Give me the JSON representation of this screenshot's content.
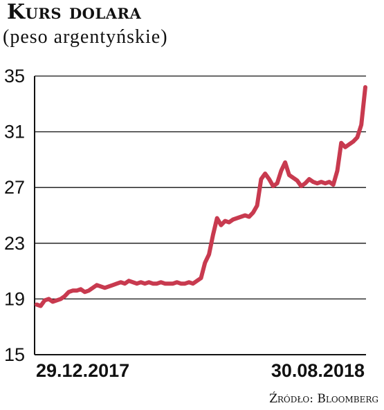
{
  "header": {
    "title": "Kurs dolara",
    "subtitle": "(peso argentyńskie)"
  },
  "footer": {
    "source": "Źródło: Bloomberg"
  },
  "colors": {
    "line": "#c83a4f",
    "grid": "#111111"
  },
  "chart_data": {
    "type": "line",
    "title": "Kurs dolara",
    "subtitle": "(peso argentyńskie)",
    "xlabel": "",
    "ylabel": "",
    "ylim": [
      15,
      35
    ],
    "yticks": [
      15,
      19,
      23,
      27,
      31,
      35
    ],
    "x_tick_labels": [
      "29.12.2017",
      "30.08.2018"
    ],
    "grid": true,
    "series": [
      {
        "values": [
          18.6,
          18.5,
          18.9,
          19.0,
          18.8,
          18.9,
          19.0,
          19.2,
          19.5,
          19.6,
          19.6,
          19.7,
          19.5,
          19.6,
          19.8,
          20.0,
          19.9,
          19.8,
          19.9,
          20.0,
          20.1,
          20.2,
          20.1,
          20.3,
          20.2,
          20.1,
          20.2,
          20.1,
          20.2,
          20.1,
          20.1,
          20.2,
          20.1,
          20.1,
          20.1,
          20.2,
          20.1,
          20.1,
          20.2,
          20.1,
          20.3,
          20.5,
          21.6,
          22.2,
          23.6,
          24.8,
          24.3,
          24.6,
          24.5,
          24.7,
          24.8,
          24.9,
          25.0,
          24.9,
          25.2,
          25.7,
          27.6,
          28.0,
          27.6,
          27.1,
          27.3,
          28.2,
          28.8,
          27.9,
          27.7,
          27.5,
          27.1,
          27.3,
          27.6,
          27.4,
          27.3,
          27.4,
          27.3,
          27.4,
          27.2,
          28.2,
          30.2,
          29.9,
          30.1,
          30.3,
          30.6,
          31.5,
          34.2
        ]
      }
    ]
  }
}
